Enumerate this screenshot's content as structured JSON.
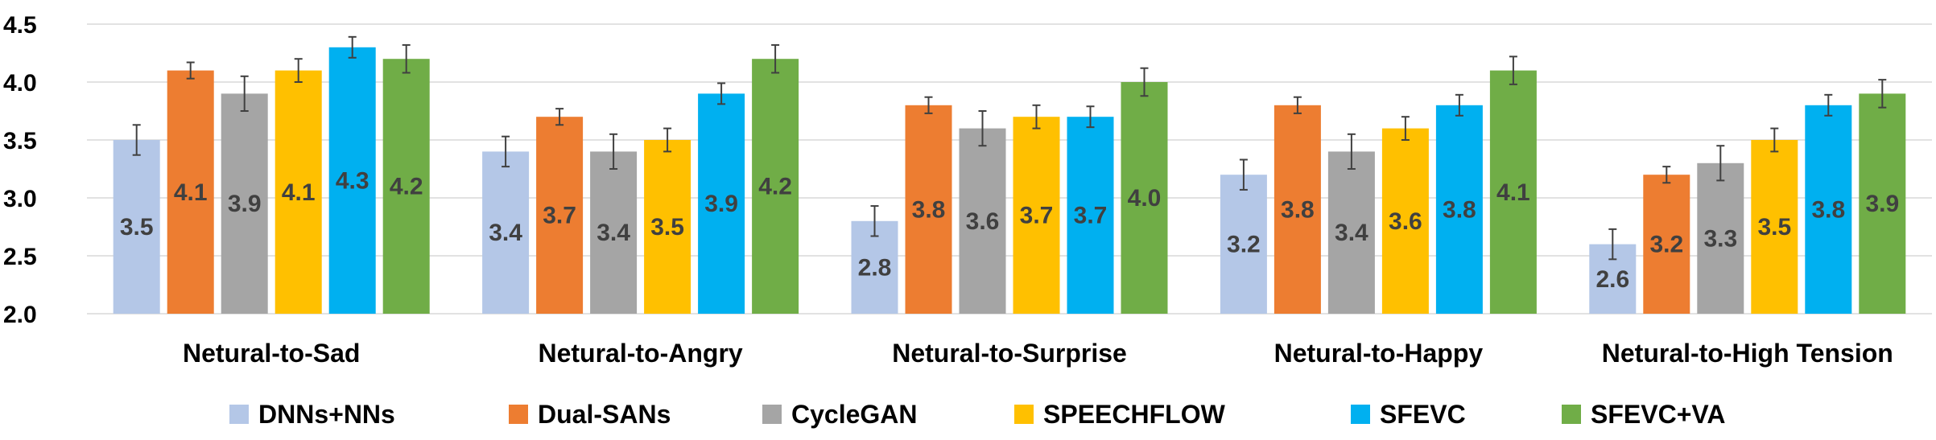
{
  "chart_data": {
    "type": "bar",
    "title": "",
    "xlabel": "",
    "ylabel": "",
    "ylim": [
      2.0,
      4.5
    ],
    "yticks": [
      "2.0",
      "2.5",
      "3.0",
      "3.5",
      "4.0",
      "4.5"
    ],
    "grid": true,
    "legend_position": "bottom",
    "categories": [
      "Netural-to-Sad",
      "Netural-to-Angry",
      "Netural-to-Surprise",
      "Netural-to-Happy",
      "Netural-to-High Tension"
    ],
    "series": [
      {
        "name": "DNNs+NNs",
        "color": "#b4c7e7",
        "values": [
          3.5,
          3.4,
          2.8,
          3.2,
          2.6
        ],
        "labels": [
          "3.5",
          "3.4",
          "2.8",
          "3.2",
          "2.6"
        ],
        "errors": [
          0.13,
          0.13,
          0.13,
          0.13,
          0.13
        ]
      },
      {
        "name": "Dual-SANs",
        "color": "#ed7d31",
        "values": [
          4.1,
          3.7,
          3.8,
          3.8,
          3.2
        ],
        "labels": [
          "4.1",
          "3.7",
          "3.8",
          "3.8",
          "3.2"
        ],
        "errors": [
          0.07,
          0.07,
          0.07,
          0.07,
          0.07
        ]
      },
      {
        "name": "CycleGAN",
        "color": "#a5a5a5",
        "values": [
          3.9,
          3.4,
          3.6,
          3.4,
          3.3
        ],
        "labels": [
          "3.9",
          "3.4",
          "3.6",
          "3.4",
          "3.3"
        ],
        "errors": [
          0.15,
          0.15,
          0.15,
          0.15,
          0.15
        ]
      },
      {
        "name": "SPEECHFLOW",
        "color": "#ffc000",
        "values": [
          4.1,
          3.5,
          3.7,
          3.6,
          3.5
        ],
        "labels": [
          "4.1",
          "3.5",
          "3.7",
          "3.6",
          "3.5"
        ],
        "errors": [
          0.1,
          0.1,
          0.1,
          0.1,
          0.1
        ]
      },
      {
        "name": "SFEVC",
        "color": "#00b0f0",
        "values": [
          4.3,
          3.9,
          3.7,
          3.8,
          3.8
        ],
        "labels": [
          "4.3",
          "3.9",
          "3.7",
          "3.8",
          "3.8"
        ],
        "errors": [
          0.09,
          0.09,
          0.09,
          0.09,
          0.09
        ]
      },
      {
        "name": "SFEVC+VA",
        "color": "#70ad47",
        "values": [
          4.2,
          4.2,
          4.0,
          4.1,
          3.9
        ],
        "labels": [
          "4.2",
          "4.2",
          "4.0",
          "4.1",
          "3.9"
        ],
        "errors": [
          0.12,
          0.12,
          0.12,
          0.12,
          0.12
        ]
      }
    ]
  }
}
